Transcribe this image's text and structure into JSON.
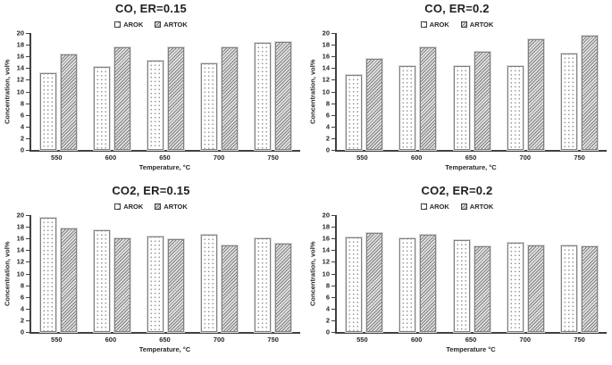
{
  "figure": {
    "background_color": "#ffffff",
    "text_color": "#262626",
    "axis_color": "#404040",
    "bar_outline_color": "#808080",
    "arok_pattern": "white-with-gray-dots",
    "artok_pattern": "gray-diagonal-hatch"
  },
  "chart_data": [
    {
      "type": "bar",
      "title": "CO, ER=0.15",
      "categories": [
        "550",
        "600",
        "650",
        "700",
        "750"
      ],
      "series": [
        {
          "name": "AROK",
          "values": [
            13.2,
            14.2,
            15.2,
            14.8,
            18.3
          ]
        },
        {
          "name": "ARTOK",
          "values": [
            16.4,
            17.6,
            17.6,
            17.6,
            18.5
          ]
        }
      ],
      "xlabel": "Temperature, °C",
      "ylabel": "Concentration, vol%",
      "ylim": [
        0,
        20
      ],
      "ytick_step": 2,
      "legend_position": "top",
      "grid": false
    },
    {
      "type": "bar",
      "title": "CO, ER=0.2",
      "categories": [
        "550",
        "600",
        "650",
        "700",
        "750"
      ],
      "series": [
        {
          "name": "AROK",
          "values": [
            12.8,
            14.3,
            14.3,
            14.3,
            16.5
          ]
        },
        {
          "name": "ARTOK",
          "values": [
            15.6,
            17.5,
            16.8,
            18.9,
            19.5
          ]
        }
      ],
      "xlabel": "Temperature, °C",
      "ylabel": "Concentration, vol%",
      "ylim": [
        0,
        20
      ],
      "ytick_step": 2,
      "legend_position": "top",
      "grid": false
    },
    {
      "type": "bar",
      "title": "CO2, ER=0.15",
      "categories": [
        "550",
        "600",
        "650",
        "700",
        "750"
      ],
      "series": [
        {
          "name": "AROK",
          "values": [
            19.6,
            17.4,
            16.4,
            16.6,
            16.1
          ]
        },
        {
          "name": "ARTOK",
          "values": [
            17.7,
            16.0,
            15.9,
            14.8,
            15.1
          ]
        }
      ],
      "xlabel": "Temperature, °C",
      "ylabel": "Concentration, vol%",
      "ylim": [
        0,
        20
      ],
      "ytick_step": 2,
      "legend_position": "top",
      "grid": false
    },
    {
      "type": "bar",
      "title": "CO2, ER=0.2",
      "categories": [
        "550",
        "600",
        "650",
        "700",
        "750"
      ],
      "series": [
        {
          "name": "AROK",
          "values": [
            16.2,
            16.0,
            15.8,
            15.3,
            14.8
          ]
        },
        {
          "name": "ARTOK",
          "values": [
            16.9,
            16.7,
            14.6,
            14.8,
            14.6
          ]
        }
      ],
      "xlabel": "Temperature °C",
      "ylabel": "Concentration, vol%",
      "ylim": [
        0,
        20
      ],
      "ytick_step": 2,
      "legend_position": "top",
      "grid": false
    }
  ]
}
